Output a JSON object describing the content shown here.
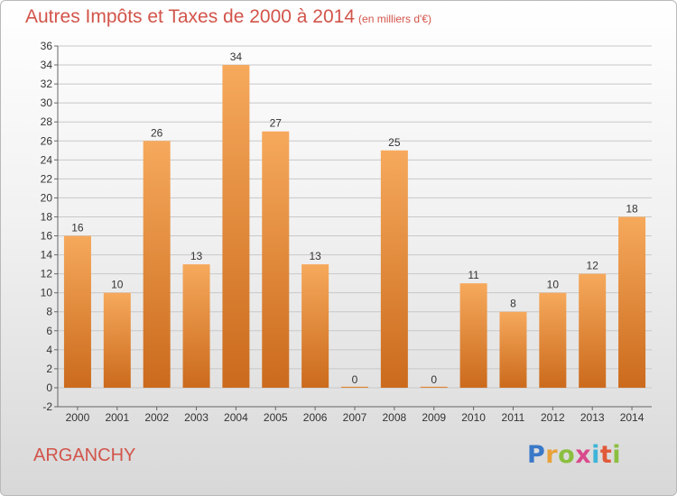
{
  "header": {
    "title": "Autres Impôts et Taxes de 2000 à 2014",
    "unit": "(en milliers d'€)"
  },
  "footer": {
    "commune": "ARGANCHY",
    "logo_text": "Proxiti",
    "logo_colors": [
      "#3a78c8",
      "#e8a23a",
      "#8bbf3f",
      "#d94a8c",
      "#3fb4d8",
      "#e05a3a",
      "#8bbf3f"
    ]
  },
  "colors": {
    "bar_top": "#f6a95c",
    "bar_bottom": "#cb6a1c",
    "title": "#d2544a",
    "grid": "#c8c8c8",
    "axis_text": "#333333"
  },
  "chart_data": {
    "type": "bar",
    "title": "Autres Impôts et Taxes de 2000 à 2014",
    "subtitle": "(en milliers d'€)",
    "xlabel": "",
    "ylabel": "",
    "categories": [
      "2000",
      "2001",
      "2002",
      "2003",
      "2004",
      "2005",
      "2006",
      "2007",
      "2008",
      "2009",
      "2010",
      "2011",
      "2012",
      "2013",
      "2014"
    ],
    "values": [
      16,
      10,
      26,
      13,
      34,
      27,
      13,
      0,
      25,
      0,
      11,
      8,
      10,
      12,
      18
    ],
    "ylim": [
      -2,
      36
    ],
    "yticks": [
      -2,
      0,
      2,
      4,
      6,
      8,
      10,
      12,
      14,
      16,
      18,
      20,
      22,
      24,
      26,
      28,
      30,
      32,
      34,
      36
    ],
    "grid": true,
    "data_labels": true,
    "legend": "none"
  }
}
